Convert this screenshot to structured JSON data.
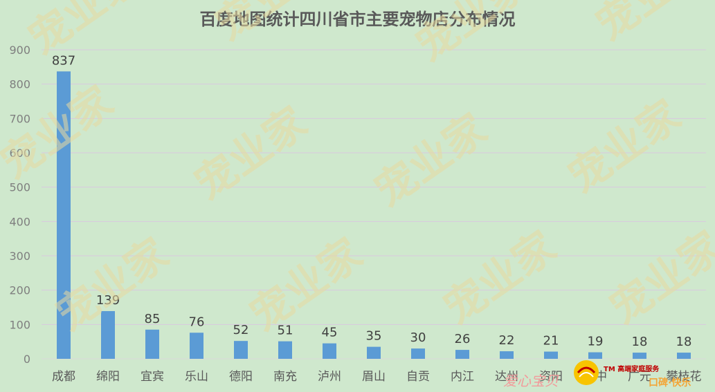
{
  "chart_data": {
    "type": "bar",
    "title": "百度地图统计四川省市主要宠物店分布情况",
    "categories": [
      "成都",
      "绵阳",
      "宜宾",
      "乐山",
      "德阳",
      "南充",
      "泸州",
      "眉山",
      "自贡",
      "内江",
      "达州",
      "资阳",
      "巴中",
      "广元",
      "攀枝花"
    ],
    "values": [
      837,
      139,
      85,
      76,
      52,
      51,
      45,
      35,
      30,
      26,
      22,
      21,
      19,
      18,
      18
    ],
    "ylim": [
      0,
      900
    ],
    "yticks": [
      0,
      100,
      200,
      300,
      400,
      500,
      600,
      700,
      800,
      900
    ],
    "grid": true,
    "bar_color": "#5b9bd5",
    "xlabel": "",
    "ylabel": ""
  },
  "watermark": {
    "text": "宠业家",
    "color": "#e8d9a0"
  },
  "logo": {
    "text": "爱心宝贝",
    "tm_text": "TM 高端家庭服务",
    "sub_text": "口碑·快乐"
  }
}
